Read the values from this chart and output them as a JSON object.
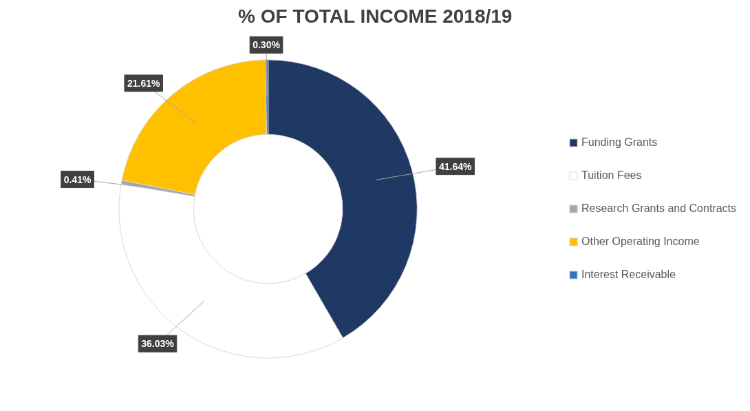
{
  "chart_data": {
    "type": "donut",
    "title": "% OF TOTAL INCOME 2018/19",
    "categories": [
      "Funding Grants",
      "Tuition Fees",
      "Research Grants and Contracts",
      "Other Operating Income",
      "Interest Receivable"
    ],
    "values": [
      41.64,
      36.03,
      0.41,
      21.61,
      0.3
    ],
    "colors": [
      "#1f3864",
      "#ffffff",
      "#a6a6a6",
      "#ffc000",
      "#2e75b6"
    ],
    "value_labels": [
      "41.64%",
      "36.03%",
      "0.41%",
      "21.61%",
      "0.30%"
    ],
    "legend": "right"
  }
}
